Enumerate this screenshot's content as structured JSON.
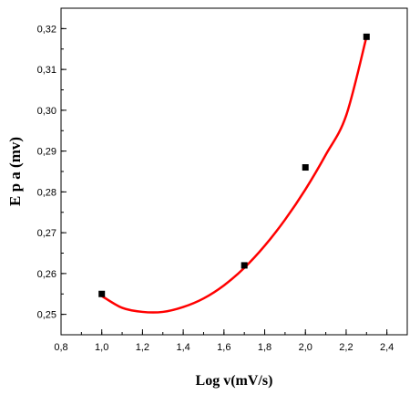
{
  "chart_data": {
    "type": "scatter",
    "title": "",
    "xlabel": "Log v(mV/s)",
    "ylabel": "E p a (mv)",
    "xlim": [
      0.8,
      2.5
    ],
    "ylim": [
      0.245,
      0.325
    ],
    "x_ticks": [
      "0,8",
      "1,0",
      "1,2",
      "1,4",
      "1,6",
      "1,8",
      "2,0",
      "2,2",
      "2,4"
    ],
    "y_ticks": [
      "0,25",
      "0,26",
      "0,27",
      "0,28",
      "0,29",
      "0,30",
      "0,31",
      "0,32"
    ],
    "grid": false,
    "legend": "none",
    "series": [
      {
        "type": "scatter",
        "marker": "square",
        "color": "#000000",
        "x": [
          1.0,
          1.7,
          2.0,
          2.3
        ],
        "y": [
          0.255,
          0.262,
          0.286,
          0.318
        ]
      },
      {
        "type": "line",
        "fit": "polynomial-2",
        "color": "#ff0000",
        "x": [
          1.0,
          1.1,
          1.2,
          1.3,
          1.4,
          1.5,
          1.6,
          1.7,
          1.8,
          1.9,
          2.0,
          2.1,
          2.2,
          2.3
        ],
        "y": [
          0.2545,
          0.2516,
          0.2506,
          0.2506,
          0.2518,
          0.2539,
          0.2571,
          0.2614,
          0.2668,
          0.2732,
          0.2806,
          0.2891,
          0.2987,
          0.318
        ]
      }
    ]
  }
}
